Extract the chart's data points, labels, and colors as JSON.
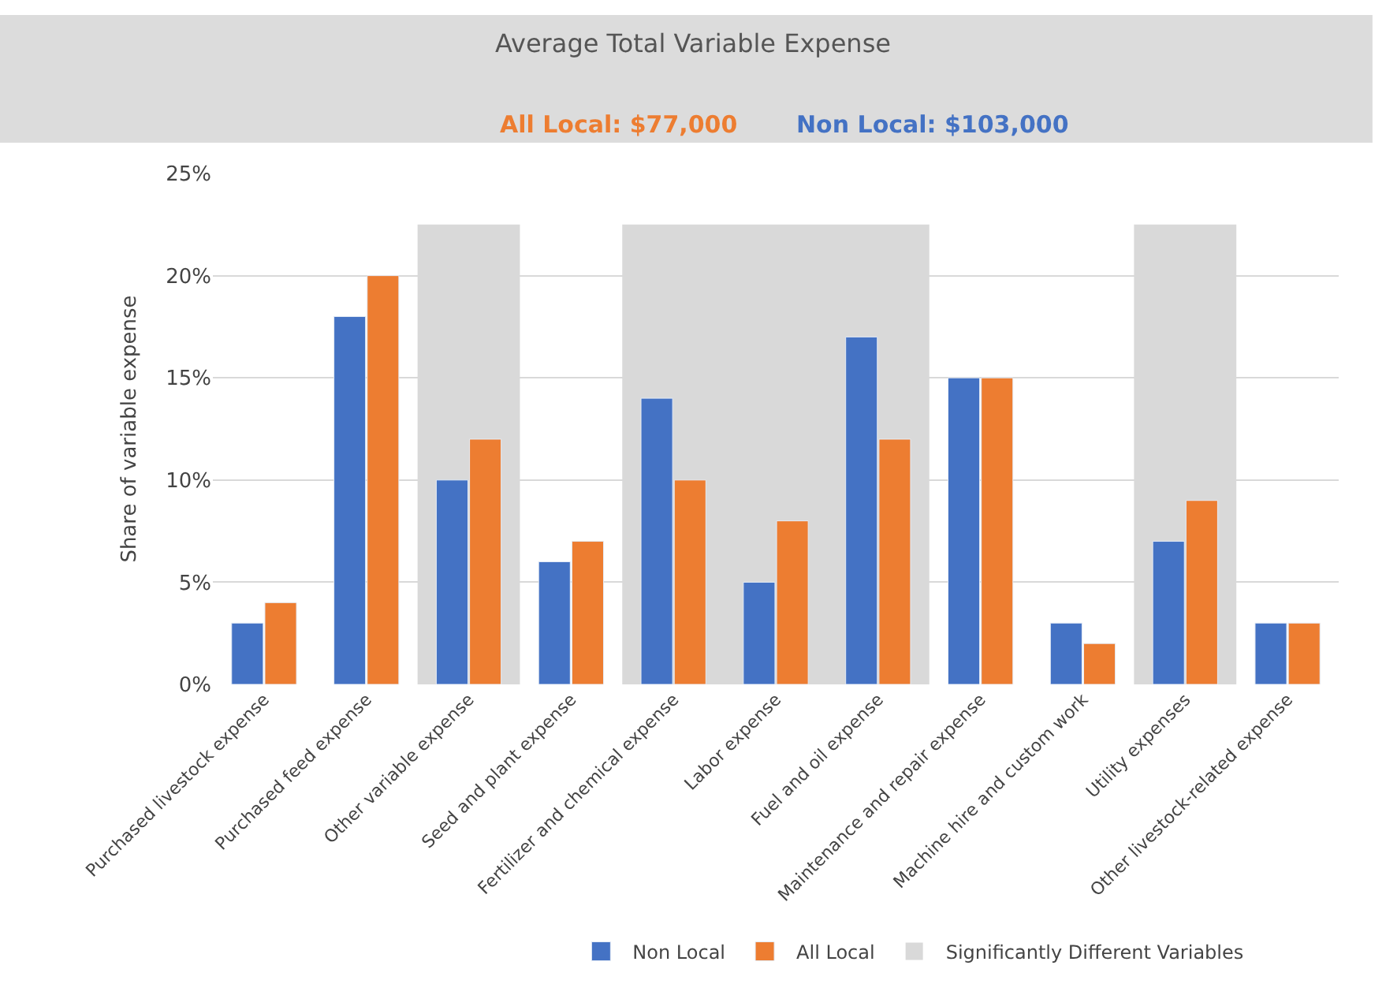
{
  "chart_data": {
    "type": "bar",
    "title": "Average Total Variable Expense",
    "annotations": [
      "All Local: $77,000",
      "Non Local: $103,000"
    ],
    "ylabel": "Share of variable expense",
    "categories": [
      "Purchased livestock expense",
      "Purchased feed expense",
      "Other variable expense",
      "Seed and plant expense",
      "Fertilizer and chemical expense",
      "Labor expense",
      "Fuel and oil expense",
      "Maintenance and repair expense",
      "Machine hire and custom work",
      "Utility expenses",
      "Other livestock-related expense"
    ],
    "series": [
      {
        "name": "Non Local",
        "color": "#4472c4",
        "values": [
          3,
          18,
          10,
          6,
          14,
          5,
          17,
          15,
          3,
          7,
          3
        ]
      },
      {
        "name": "All Local",
        "color": "#ed7d31",
        "values": [
          4,
          20,
          12,
          7,
          10,
          8,
          12,
          15,
          2,
          9,
          3
        ]
      }
    ],
    "bands": [
      {
        "axis": "x",
        "from": "Other variable expense",
        "to": "Other variable expense",
        "label": "Significantly Different Variables",
        "color": "#d9d9d9"
      },
      {
        "axis": "x",
        "from": "Fertilizer and chemical expense",
        "to": "Fuel and oil expense",
        "color": "#d9d9d9"
      },
      {
        "axis": "x",
        "from": "Utility expenses",
        "to": "Utility expenses",
        "color": "#d9d9d9"
      }
    ],
    "ylim": [
      0,
      25
    ],
    "yticks": [
      {
        "value": 0,
        "label": "0%"
      },
      {
        "value": 5,
        "label": "5%"
      },
      {
        "value": 10,
        "label": "10%"
      },
      {
        "value": 15,
        "label": "15%"
      },
      {
        "value": 20,
        "label": "20%"
      },
      {
        "value": 25,
        "label": "25%"
      }
    ],
    "grid": "y",
    "legend": "bottom"
  }
}
